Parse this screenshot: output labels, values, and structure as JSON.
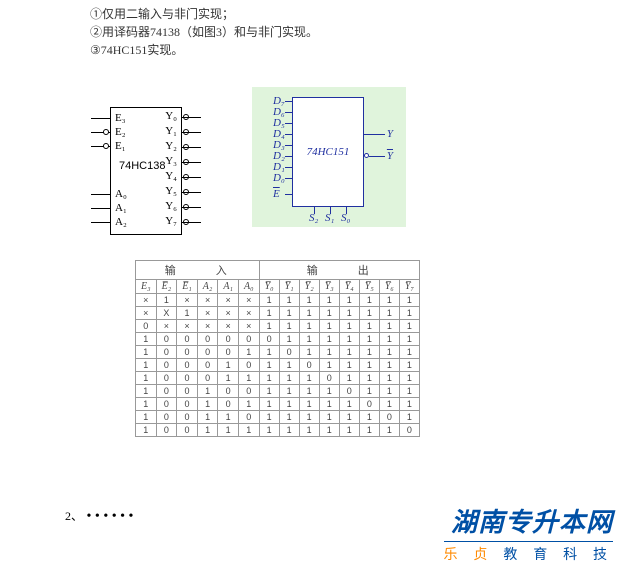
{
  "intro": {
    "l1": "①仅用二输入与非门实现；",
    "l2": "②用译码器74138（如图3）和与非门实现。",
    "l3": "③74HC151实现。"
  },
  "chip138": {
    "name": "74HC138",
    "left_pins": [
      "E₃",
      "E₂",
      "E₁",
      "A₀",
      "A₁",
      "A₂"
    ],
    "right_pins": [
      "Y₀",
      "Y₁",
      "Y₂",
      "Y₃",
      "Y₄",
      "Y₅",
      "Y₆",
      "Y₇"
    ]
  },
  "chip151": {
    "name": "74HC151",
    "d_labels": [
      "D₇",
      "D₆",
      "D₅",
      "D₄",
      "D₃",
      "D₂",
      "D₁",
      "D₀",
      "E"
    ],
    "s_labels": [
      "S₂",
      "S₁",
      "S₀"
    ],
    "y": "Y",
    "ybar": "Y"
  },
  "table": {
    "group_in": "输　　入",
    "group_out": "输　　出",
    "headers_in": [
      "E₃",
      "E̅₂",
      "E̅₁",
      "A₂",
      "A₁",
      "A₀"
    ],
    "headers_out": [
      "Y̅₀",
      "Y̅₁",
      "Y̅₂",
      "Y̅₃",
      "Y̅₄",
      "Y̅₅",
      "Y̅₆",
      "Y̅₇"
    ],
    "rows": [
      [
        "×",
        "1",
        "×",
        "×",
        "×",
        "×",
        "1",
        "1",
        "1",
        "1",
        "1",
        "1",
        "1",
        "1"
      ],
      [
        "×",
        "X",
        "1",
        "×",
        "×",
        "×",
        "1",
        "1",
        "1",
        "1",
        "1",
        "1",
        "1",
        "1"
      ],
      [
        "0",
        "×",
        "×",
        "×",
        "×",
        "×",
        "1",
        "1",
        "1",
        "1",
        "1",
        "1",
        "1",
        "1"
      ],
      [
        "1",
        "0",
        "0",
        "0",
        "0",
        "0",
        "0",
        "1",
        "1",
        "1",
        "1",
        "1",
        "1",
        "1"
      ],
      [
        "1",
        "0",
        "0",
        "0",
        "0",
        "1",
        "1",
        "0",
        "1",
        "1",
        "1",
        "1",
        "1",
        "1"
      ],
      [
        "1",
        "0",
        "0",
        "0",
        "1",
        "0",
        "1",
        "1",
        "0",
        "1",
        "1",
        "1",
        "1",
        "1"
      ],
      [
        "1",
        "0",
        "0",
        "0",
        "1",
        "1",
        "1",
        "1",
        "1",
        "0",
        "1",
        "1",
        "1",
        "1"
      ],
      [
        "1",
        "0",
        "0",
        "1",
        "0",
        "0",
        "1",
        "1",
        "1",
        "1",
        "0",
        "1",
        "1",
        "1"
      ],
      [
        "1",
        "0",
        "0",
        "1",
        "0",
        "1",
        "1",
        "1",
        "1",
        "1",
        "1",
        "0",
        "1",
        "1"
      ],
      [
        "1",
        "0",
        "0",
        "1",
        "1",
        "0",
        "1",
        "1",
        "1",
        "1",
        "1",
        "1",
        "0",
        "1"
      ],
      [
        "1",
        "0",
        "0",
        "1",
        "1",
        "1",
        "1",
        "1",
        "1",
        "1",
        "1",
        "1",
        "1",
        "0"
      ]
    ]
  },
  "dots": {
    "num": "2、",
    "d": "• • • • • •"
  },
  "watermark": {
    "top": "湖南专升本网",
    "bot_orange": "乐 贞",
    "bot_blue": " 教 育 科 技"
  }
}
